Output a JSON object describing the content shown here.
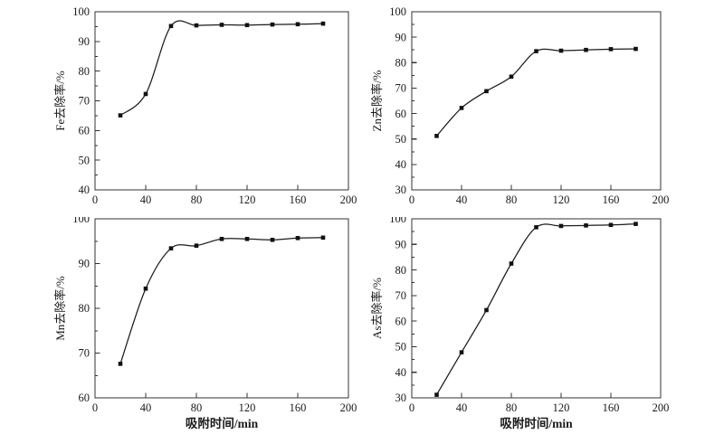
{
  "figure": {
    "background": "#ffffff",
    "description_labels": {
      "x_axis_title": "吸附时间/min",
      "fe_y_title": "Fe去除率/%",
      "zn_y_title": "Zn去除率/%",
      "mn_y_title": "Mn去除率/%",
      "as_y_title": "As去除率/%"
    }
  },
  "style": {
    "line_color": "#1b1b1b",
    "marker_color": "#111111",
    "axis_color": "#333333",
    "text_color": "#1a1a1a",
    "background": "#ffffff",
    "marker_shape": "square",
    "line_style": "solid"
  },
  "chart_data": [
    {
      "id": "fe",
      "type": "line",
      "title": "",
      "xlabel": "",
      "ylabel": "Fe去除率/%",
      "x": [
        20,
        40,
        60,
        80,
        100,
        120,
        140,
        160,
        180
      ],
      "values": [
        65.1,
        72.3,
        95.2,
        95.4,
        95.6,
        95.5,
        95.7,
        95.8,
        96.0
      ],
      "xlim": [
        0,
        200
      ],
      "ylim": [
        40,
        100
      ],
      "xticks": [
        0,
        40,
        80,
        120,
        160,
        200
      ],
      "yticks": [
        40,
        50,
        60,
        70,
        80,
        90,
        100
      ],
      "y_minor_step": 5,
      "grid": false,
      "legend": "none",
      "curve": "spline",
      "marker": "square"
    },
    {
      "id": "zn",
      "type": "line",
      "title": "",
      "xlabel": "",
      "ylabel": "Zn去除率/%",
      "x": [
        20,
        40,
        60,
        80,
        100,
        120,
        140,
        160,
        180
      ],
      "values": [
        51.2,
        62.2,
        68.8,
        74.5,
        84.5,
        84.7,
        85.0,
        85.3,
        85.4
      ],
      "xlim": [
        0,
        200
      ],
      "ylim": [
        30,
        100
      ],
      "xticks": [
        0,
        40,
        80,
        120,
        160,
        200
      ],
      "yticks": [
        30,
        40,
        50,
        60,
        70,
        80,
        90,
        100
      ],
      "y_minor_step": 5,
      "grid": false,
      "legend": "none",
      "curve": "spline",
      "marker": "square"
    },
    {
      "id": "mn",
      "type": "line",
      "title": "",
      "xlabel": "吸附时间/min",
      "ylabel": "Mn去除率/%",
      "x": [
        20,
        40,
        60,
        80,
        100,
        120,
        140,
        160,
        180
      ],
      "values": [
        67.6,
        84.4,
        93.4,
        94.0,
        95.5,
        95.5,
        95.3,
        95.7,
        95.8
      ],
      "xlim": [
        0,
        200
      ],
      "ylim": [
        60,
        100
      ],
      "xticks": [
        0,
        40,
        80,
        120,
        160,
        200
      ],
      "yticks": [
        60,
        70,
        80,
        90,
        100
      ],
      "y_minor_step": 5,
      "grid": false,
      "legend": "none",
      "curve": "spline",
      "marker": "square"
    },
    {
      "id": "as",
      "type": "line",
      "title": "",
      "xlabel": "吸附时间/min",
      "ylabel": "As去除率/%",
      "x": [
        20,
        40,
        60,
        80,
        100,
        120,
        140,
        160,
        180
      ],
      "values": [
        31.2,
        47.8,
        64.3,
        82.5,
        96.7,
        97.2,
        97.4,
        97.6,
        98.0
      ],
      "xlim": [
        0,
        200
      ],
      "ylim": [
        30,
        100
      ],
      "xticks": [
        0,
        40,
        80,
        120,
        160,
        200
      ],
      "yticks": [
        30,
        40,
        50,
        60,
        70,
        80,
        90,
        100
      ],
      "y_minor_step": 5,
      "grid": false,
      "legend": "none",
      "curve": "spline",
      "marker": "square"
    }
  ]
}
